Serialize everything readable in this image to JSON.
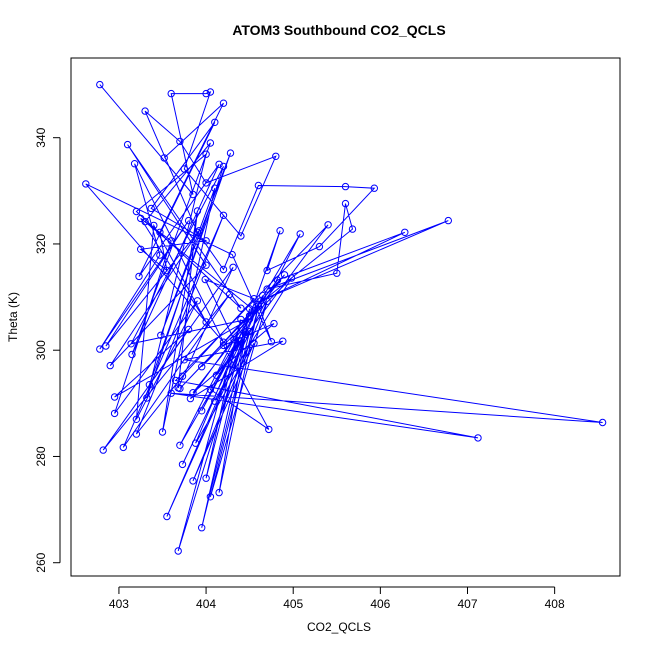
{
  "chart_data": {
    "type": "scatter",
    "title": "ATOM3 Southbound CO2_QCLS",
    "xlabel": "CO2_QCLS",
    "ylabel": "Theta (K)",
    "xlim": [
      402.45,
      408.75
    ],
    "ylim": [
      257.5,
      355.0
    ],
    "x_ticks": [
      403,
      404,
      405,
      406,
      407,
      408
    ],
    "y_ticks": [
      260,
      280,
      300,
      320,
      340
    ],
    "grid": false,
    "legend": "none",
    "line_connected": true,
    "colors": {
      "series": "#0000ff",
      "axis": "#000000",
      "background": "#ffffff"
    },
    "series": [
      {
        "values": [
          [
            402.78,
            350.0
          ],
          [
            403.85,
            329.3
          ],
          [
            403.6,
            348.3
          ],
          [
            404.0,
            348.3
          ],
          [
            404.05,
            348.6
          ],
          [
            403.75,
            334.1
          ],
          [
            404.4,
            321.5
          ],
          [
            404.8,
            336.5
          ],
          [
            404.0,
            331.5
          ],
          [
            403.7,
            339.3
          ],
          [
            403.3,
            345.0
          ],
          [
            403.9,
            322.2
          ],
          [
            404.2,
            315.2
          ],
          [
            404.6,
            331.0
          ],
          [
            405.6,
            330.8
          ],
          [
            405.93,
            330.5
          ],
          [
            405.3,
            319.5
          ],
          [
            404.7,
            315.0
          ],
          [
            404.85,
            322.5
          ],
          [
            404.5,
            306.4
          ],
          [
            404.82,
            313.2
          ],
          [
            406.28,
            322.2
          ],
          [
            404.63,
            309.3
          ],
          [
            406.78,
            324.4
          ],
          [
            404.7,
            311.5
          ],
          [
            405.5,
            314.5
          ],
          [
            405.6,
            327.6
          ],
          [
            405.68,
            322.8
          ],
          [
            404.6,
            308.6
          ],
          [
            404.75,
            301.6
          ],
          [
            404.3,
            318.0
          ],
          [
            402.62,
            331.3
          ],
          [
            404.2,
            301.5
          ],
          [
            403.18,
            335.1
          ],
          [
            403.47,
            317.9
          ],
          [
            402.78,
            300.2
          ],
          [
            403.8,
            324.4
          ],
          [
            402.85,
            300.8
          ],
          [
            403.92,
            322.5
          ],
          [
            402.9,
            297.1
          ],
          [
            404.0,
            316.0
          ],
          [
            403.1,
            338.7
          ],
          [
            404.4,
            307.9
          ],
          [
            403.2,
            326.1
          ],
          [
            404.0,
            336.9
          ],
          [
            403.32,
            291.0
          ],
          [
            404.2,
            334.6
          ],
          [
            403.14,
            301.2
          ],
          [
            404.5,
            305.9
          ],
          [
            402.95,
            291.2
          ],
          [
            403.8,
            303.9
          ],
          [
            403.35,
            293.5
          ],
          [
            404.28,
            337.1
          ],
          [
            403.48,
            302.8
          ],
          [
            404.1,
            330.5
          ],
          [
            403.5,
            284.6
          ],
          [
            403.9,
            326.2
          ],
          [
            403.68,
            292.9
          ],
          [
            404.31,
            315.6
          ],
          [
            402.82,
            281.2
          ],
          [
            404.27,
            310.5
          ],
          [
            403.05,
            281.7
          ],
          [
            404.2,
            325.4
          ],
          [
            403.2,
            284.2
          ],
          [
            403.73,
            295.1
          ],
          [
            404.55,
            309.7
          ],
          [
            403.99,
            313.3
          ],
          [
            404.32,
            302.0
          ],
          [
            403.7,
            282.1
          ],
          [
            404.45,
            303.4
          ],
          [
            403.73,
            278.5
          ],
          [
            404.65,
            310.3
          ],
          [
            403.55,
            268.7
          ],
          [
            404.5,
            303.5
          ],
          [
            403.95,
            266.6
          ],
          [
            404.45,
            303.0
          ],
          [
            403.68,
            262.2
          ],
          [
            404.4,
            305.8
          ],
          [
            404.0,
            275.9
          ],
          [
            404.5,
            307.8
          ],
          [
            404.15,
            273.2
          ],
          [
            404.6,
            308.3
          ],
          [
            404.05,
            272.4
          ],
          [
            404.7,
            309.2
          ],
          [
            403.85,
            275.4
          ],
          [
            404.55,
            301.3
          ],
          [
            403.88,
            282.5
          ],
          [
            404.42,
            303.8
          ],
          [
            403.95,
            288.6
          ],
          [
            404.38,
            301.8
          ],
          [
            404.05,
            292.6
          ],
          [
            404.72,
            285.1
          ],
          [
            404.2,
            300.9
          ],
          [
            404.78,
            305.0
          ],
          [
            403.85,
            292.0
          ],
          [
            404.9,
            314.2
          ],
          [
            403.95,
            296.9
          ],
          [
            404.98,
            313.6
          ],
          [
            404.1,
            290.4
          ],
          [
            405.08,
            321.9
          ],
          [
            404.12,
            295.3
          ],
          [
            405.4,
            323.6
          ],
          [
            403.65,
            294.3
          ],
          [
            407.12,
            283.5
          ],
          [
            403.6,
            291.9
          ],
          [
            408.55,
            286.4
          ],
          [
            403.75,
            298.2
          ],
          [
            404.88,
            301.7
          ],
          [
            403.82,
            290.9
          ],
          [
            404.5,
            306.5
          ],
          [
            403.7,
            292.8
          ],
          [
            404.55,
            307.5
          ],
          [
            403.25,
            324.8
          ],
          [
            404.0,
            305.3
          ],
          [
            403.4,
            323.5
          ],
          [
            403.2,
            287.0
          ],
          [
            403.9,
            309.3
          ],
          [
            402.95,
            288.1
          ],
          [
            403.6,
            320.6
          ],
          [
            403.3,
            324.2
          ],
          [
            404.05,
            339.0
          ],
          [
            403.15,
            299.2
          ],
          [
            404.15,
            335.0
          ],
          [
            403.23,
            313.9
          ],
          [
            404.1,
            342.9
          ],
          [
            403.37,
            326.7
          ],
          [
            404.0,
            320.6
          ],
          [
            403.25,
            319.0
          ],
          [
            403.55,
            315.0
          ],
          [
            403.47,
            322.2
          ],
          [
            404.2,
            346.5
          ],
          [
            403.52,
            336.2
          ]
        ]
      }
    ]
  }
}
